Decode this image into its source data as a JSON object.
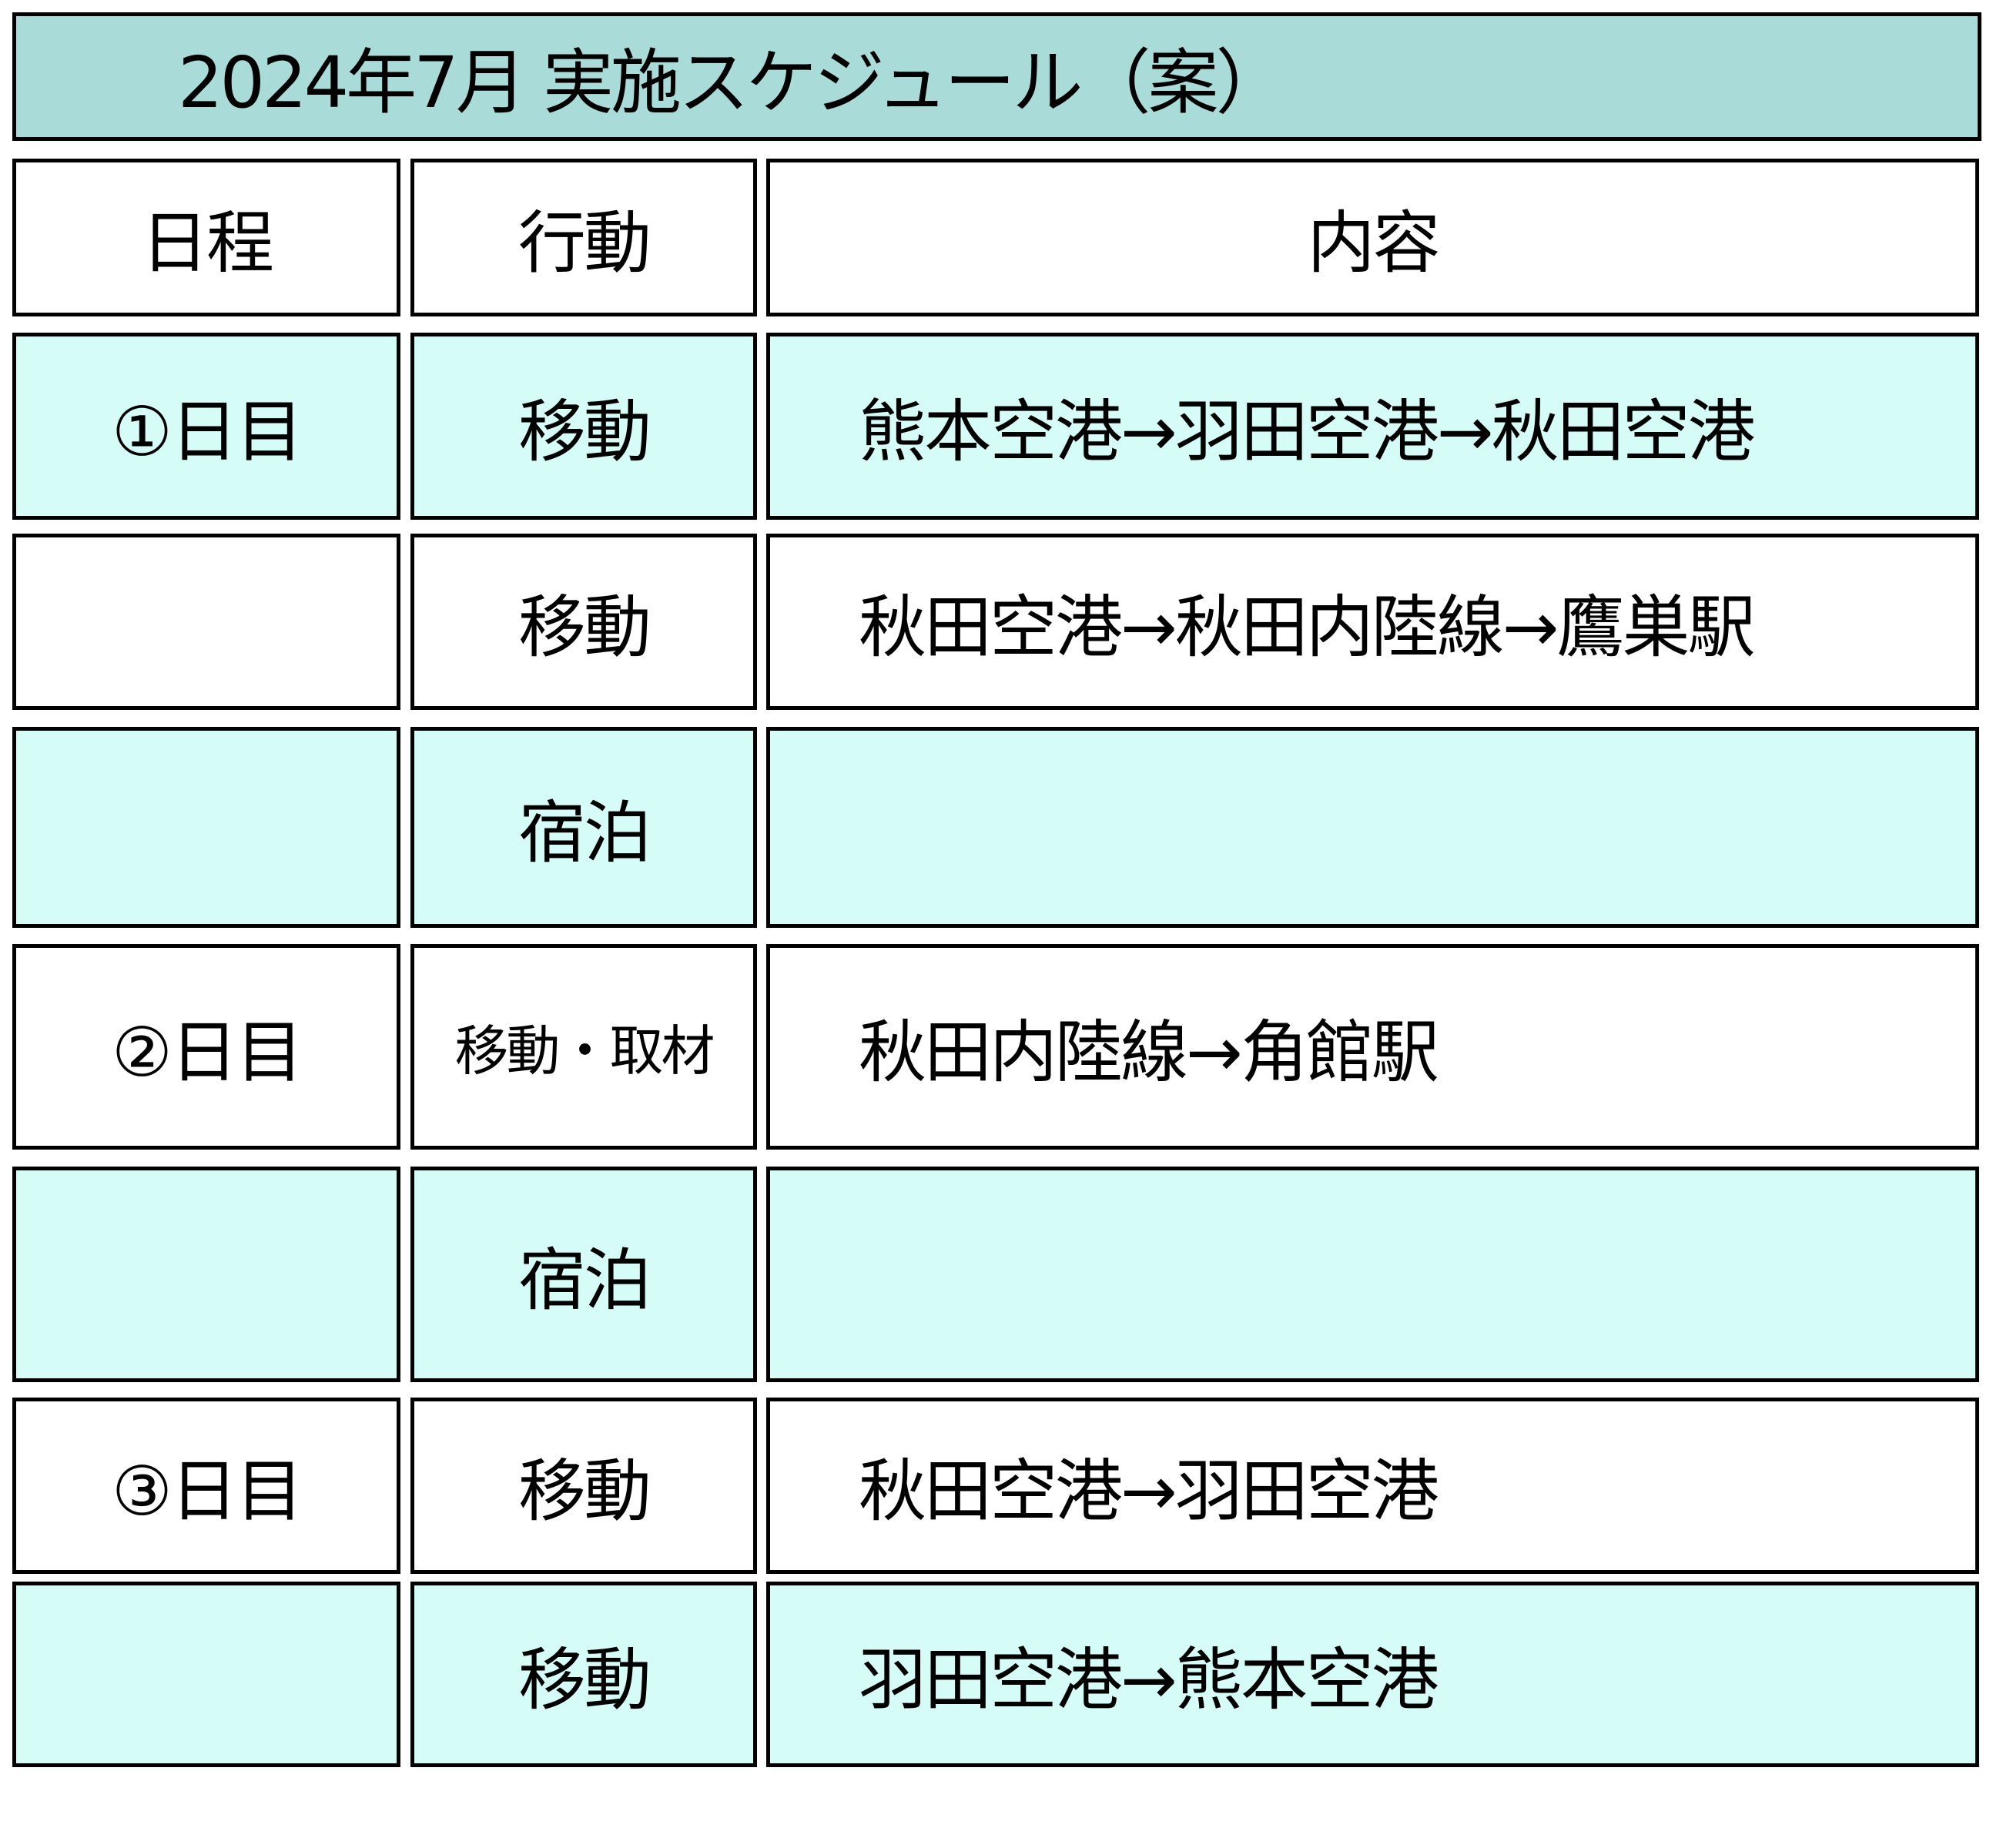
{
  "title": "2024年7月 実施スケジュール（案）",
  "colors": {
    "title_bg": "#a9dcd8",
    "alt_row_bg": "#d6fcf8"
  },
  "headers": [
    "日程",
    "行動",
    "内容"
  ],
  "rows": [
    {
      "day": "①日目",
      "action": "移動",
      "content": "熊本空港→羽田空港→秋田空港"
    },
    {
      "day": "",
      "action": "移動",
      "content": "秋田空港→秋田内陸線→鷹巣駅"
    },
    {
      "day": "",
      "action": "宿泊",
      "content": ""
    },
    {
      "day": "②日目",
      "action": "移動・取材",
      "content": "秋田内陸線→角館駅"
    },
    {
      "day": "",
      "action": "宿泊",
      "content": ""
    },
    {
      "day": "③日目",
      "action": "移動",
      "content": "秋田空港→羽田空港"
    },
    {
      "day": "",
      "action": "移動",
      "content": "羽田空港→熊本空港"
    }
  ]
}
